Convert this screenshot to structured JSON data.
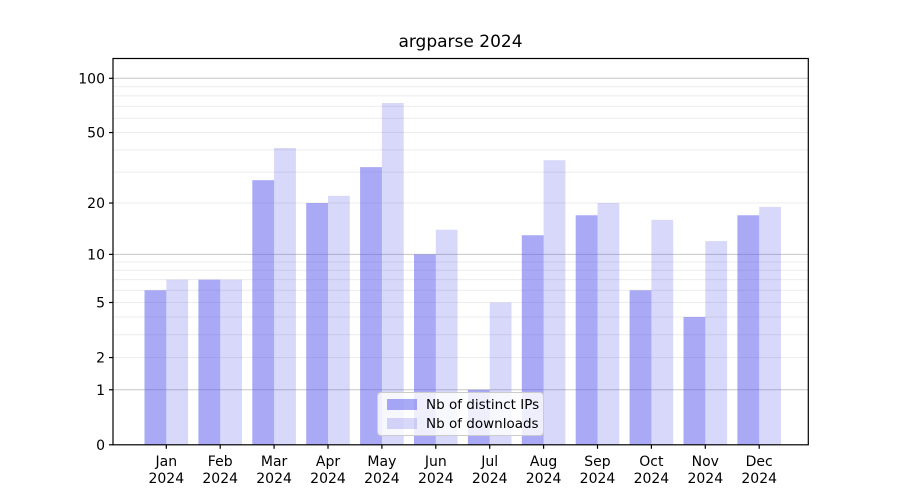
{
  "title": "argparse 2024",
  "chart_data": {
    "type": "bar",
    "title": "argparse 2024",
    "categories": [
      "Jan",
      "Feb",
      "Mar",
      "Apr",
      "May",
      "Jun",
      "Jul",
      "Aug",
      "Sep",
      "Oct",
      "Nov",
      "Dec"
    ],
    "x_tick_year": "2024",
    "series": [
      {
        "name": "Nb of distinct IPs",
        "values": [
          6,
          7,
          27,
          20,
          32,
          10,
          1,
          13,
          17,
          6,
          4,
          17
        ],
        "color": "rgba(90,90,235,0.52)"
      },
      {
        "name": "Nb of downloads",
        "values": [
          7,
          7,
          41,
          22,
          73,
          14,
          5,
          35,
          20,
          16,
          12,
          19
        ],
        "color": "rgba(90,90,235,0.24)"
      }
    ],
    "y_scale": "log1p",
    "ylim": [
      0,
      128
    ],
    "y_tick_values": [
      0,
      1,
      2,
      5,
      10,
      20,
      50,
      100
    ],
    "y_tick_labels": [
      "0",
      "1",
      "2",
      "5",
      "10",
      "20",
      "50",
      "100"
    ],
    "y_major_gridlines": [
      1,
      10,
      100
    ],
    "y_minor_gridlines": [
      2,
      3,
      4,
      5,
      6,
      7,
      8,
      9,
      20,
      30,
      40,
      50,
      60,
      70,
      80,
      90
    ],
    "grid": true,
    "legend_position": "lower-center-inside",
    "xlabel": "",
    "ylabel": ""
  },
  "colors": {
    "background": "#ffffff",
    "axis": "#000000",
    "major_gridline": "#c6c6c6",
    "minor_gridline": "#ececec",
    "bar_distinct_ips": "rgba(90,90,235,0.52)",
    "bar_downloads": "rgba(90,90,235,0.24)",
    "legend_border": "#cccccc",
    "legend_background": "rgba(255,255,255,0.8)"
  }
}
